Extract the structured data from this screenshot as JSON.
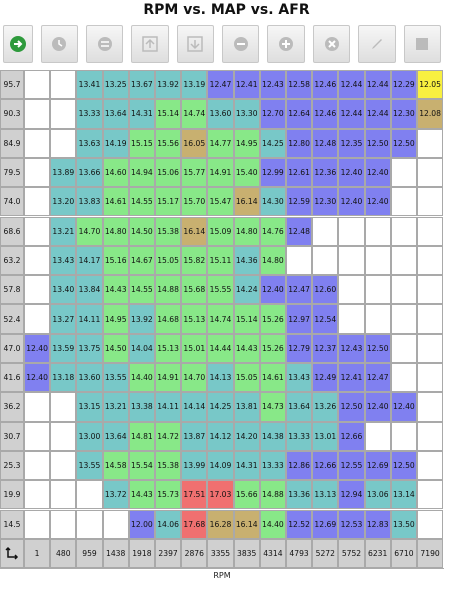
{
  "title": "RPM vs. MAP vs. AFR",
  "x_axis_label": "RPM",
  "toolbar": [
    {
      "name": "toolbar-go-button",
      "icon": "go-arrow-icon",
      "active": true
    },
    {
      "name": "toolbar-history-button",
      "icon": "clock-icon",
      "active": false
    },
    {
      "name": "toolbar-equals-button",
      "icon": "equals-icon",
      "active": false
    },
    {
      "name": "toolbar-up-button",
      "icon": "up-arrow-icon",
      "active": false
    },
    {
      "name": "toolbar-down-button",
      "icon": "down-arrow-icon",
      "active": false
    },
    {
      "name": "toolbar-minus-button",
      "icon": "minus-icon",
      "active": false
    },
    {
      "name": "toolbar-plus-button",
      "icon": "plus-icon",
      "active": false
    },
    {
      "name": "toolbar-clear-button",
      "icon": "x-circle-icon",
      "active": false
    },
    {
      "name": "toolbar-edit-button",
      "icon": "pencil-icon",
      "active": false
    },
    {
      "name": "toolbar-stop-button",
      "icon": "stop-square-icon",
      "active": false
    }
  ],
  "row_labels": [
    "95.7",
    "90.3",
    "84.9",
    "79.5",
    "74.0",
    "68.6",
    "63.2",
    "57.8",
    "52.4",
    "47.0",
    "41.6",
    "36.2",
    "30.7",
    "25.3",
    "19.9",
    "14.5"
  ],
  "col_labels": [
    "1",
    "480",
    "959",
    "1438",
    "1918",
    "2397",
    "2876",
    "3355",
    "3835",
    "4314",
    "4793",
    "5272",
    "5752",
    "6231",
    "6710",
    "7190"
  ],
  "corner_icon": "swap-axes-icon",
  "cells": [
    [
      "",
      "",
      "13.41",
      "13.25",
      "13.67",
      "13.92",
      "13.19",
      "12.47",
      "12.41",
      "12.43",
      "12.58",
      "12.46",
      "12.44",
      "12.44",
      "12.29",
      "12.05"
    ],
    [
      "",
      "",
      "13.33",
      "13.64",
      "14.31",
      "15.14",
      "14.74",
      "13.60",
      "13.30",
      "12.70",
      "12.64",
      "12.46",
      "12.44",
      "12.44",
      "12.30",
      "12.08"
    ],
    [
      "",
      "",
      "13.63",
      "14.19",
      "15.15",
      "15.56",
      "16.05",
      "14.77",
      "14.95",
      "14.25",
      "12.80",
      "12.48",
      "12.35",
      "12.50",
      "12.50",
      ""
    ],
    [
      "",
      "13.89",
      "13.66",
      "14.60",
      "14.94",
      "15.06",
      "15.77",
      "14.91",
      "15.40",
      "12.99",
      "12.61",
      "12.36",
      "12.40",
      "12.40",
      "",
      ""
    ],
    [
      "",
      "13.20",
      "13.83",
      "14.61",
      "14.55",
      "15.17",
      "15.70",
      "15.47",
      "16.14",
      "14.30",
      "12.59",
      "12.30",
      "12.40",
      "12.40",
      "",
      ""
    ],
    [
      "",
      "13.21",
      "14.70",
      "14.80",
      "14.50",
      "15.38",
      "16.14",
      "15.09",
      "14.80",
      "14.76",
      "12.48",
      "",
      "",
      "",
      "",
      ""
    ],
    [
      "",
      "13.43",
      "14.17",
      "15.16",
      "14.67",
      "15.05",
      "15.82",
      "15.11",
      "14.36",
      "14.80",
      "",
      "",
      "",
      "",
      "",
      ""
    ],
    [
      "",
      "13.40",
      "13.84",
      "14.43",
      "14.55",
      "14.88",
      "15.68",
      "15.55",
      "14.24",
      "12.40",
      "12.47",
      "12.60",
      "",
      "",
      "",
      ""
    ],
    [
      "",
      "13.27",
      "14.11",
      "14.95",
      "13.92",
      "14.68",
      "15.13",
      "14.74",
      "15.14",
      "15.26",
      "12.97",
      "12.54",
      "",
      "",
      "",
      ""
    ],
    [
      "12.40",
      "13.59",
      "13.75",
      "14.50",
      "14.04",
      "15.13",
      "15.01",
      "14.44",
      "14.43",
      "15.26",
      "12.79",
      "12.37",
      "12.43",
      "12.50",
      "",
      ""
    ],
    [
      "12.40",
      "13.18",
      "13.60",
      "13.55",
      "14.40",
      "14.91",
      "14.70",
      "14.13",
      "15.05",
      "14.61",
      "13.43",
      "12.49",
      "12.41",
      "12.47",
      "",
      ""
    ],
    [
      "",
      "",
      "13.15",
      "13.21",
      "13.38",
      "14.11",
      "14.14",
      "14.25",
      "13.81",
      "14.73",
      "13.64",
      "13.26",
      "12.50",
      "12.40",
      "12.40",
      ""
    ],
    [
      "",
      "",
      "13.00",
      "13.64",
      "14.81",
      "14.72",
      "13.87",
      "14.12",
      "14.20",
      "14.38",
      "13.33",
      "13.01",
      "12.66",
      "",
      "",
      ""
    ],
    [
      "",
      "",
      "13.55",
      "14.58",
      "15.54",
      "15.38",
      "13.99",
      "14.09",
      "14.31",
      "13.33",
      "12.86",
      "12.66",
      "12.55",
      "12.69",
      "12.50",
      ""
    ],
    [
      "",
      "",
      "",
      "13.72",
      "14.43",
      "15.73",
      "17.51",
      "17.03",
      "15.66",
      "14.88",
      "13.36",
      "13.13",
      "12.94",
      "13.06",
      "13.14",
      ""
    ],
    [
      "",
      "",
      "",
      "",
      "12.00",
      "14.06",
      "17.68",
      "16.28",
      "16.14",
      "14.40",
      "12.52",
      "12.69",
      "12.53",
      "12.83",
      "13.50",
      ""
    ]
  ],
  "colors": {
    "lean_blue": "#8080f0",
    "mid_teal": "#78c8c8",
    "green": "#88e888",
    "rich_tan": "#c8b070",
    "very_rich": "#f07070",
    "highlight_yellow": "#f8f040",
    "header_gray": "#d0d0d0"
  }
}
